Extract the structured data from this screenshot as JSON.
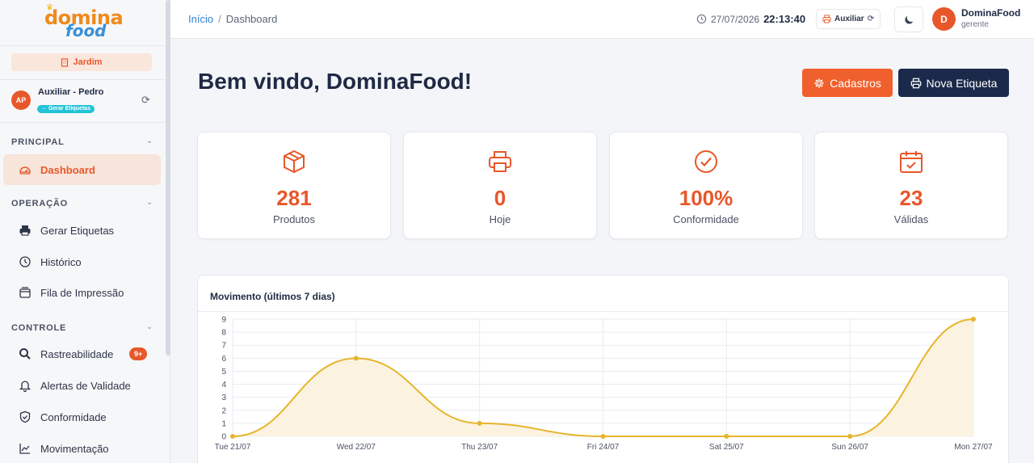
{
  "sidebar": {
    "store_label": "Jardim",
    "user": {
      "initials": "AP",
      "name": "Auxiliar - Pedro",
      "tag": "Gerar Etiquetas"
    },
    "sections": {
      "principal": "PRINCIPAL",
      "operacao": "OPERAÇÃO",
      "controle": "CONTROLE"
    },
    "items": [
      {
        "label": "Dashboard",
        "icon": "gauge-icon"
      },
      {
        "label": "Gerar Etiquetas",
        "icon": "printer-icon"
      },
      {
        "label": "Histórico",
        "icon": "clock-icon"
      },
      {
        "label": "Fila de Impressão",
        "icon": "tray-icon"
      },
      {
        "label": "Rastreabilidade",
        "icon": "search-icon",
        "badge": "9+"
      },
      {
        "label": "Alertas de Validade",
        "icon": "bell-icon"
      },
      {
        "label": "Conformidade",
        "icon": "shield-icon"
      },
      {
        "label": "Movimentação",
        "icon": "trend-icon"
      }
    ]
  },
  "header": {
    "breadcrumb_home": "Início",
    "breadcrumb_sep": "/",
    "breadcrumb_current": "Dashboard",
    "date": "27/07/2026",
    "time": "22:13:40",
    "mode_label": "Auxiliar",
    "user_initial": "D",
    "user_name": "DominaFood",
    "user_role": "gerente"
  },
  "main": {
    "welcome": "Bem vindo, DominaFood!",
    "btn_cadastros": "Cadastros",
    "btn_nova_etiqueta": "Nova Etiqueta",
    "cards": [
      {
        "value": "281",
        "label": "Produtos",
        "icon": "box-icon"
      },
      {
        "value": "0",
        "label": "Hoje",
        "icon": "printer-icon"
      },
      {
        "value": "100%",
        "label": "Conformidade",
        "icon": "check-circle-icon"
      },
      {
        "value": "23",
        "label": "Válidas",
        "icon": "calendar-check-icon"
      }
    ],
    "chart_title": "Movimento (últimos 7 dias)"
  },
  "colors": {
    "accent": "#e8572a",
    "navy": "#1b2a4a",
    "line": "#e6b52c",
    "fill": "#fbf3df"
  },
  "chart_data": {
    "type": "area",
    "categories": [
      "Tue 21/07",
      "Wed 22/07",
      "Thu 23/07",
      "Fri 24/07",
      "Sat 25/07",
      "Sun 26/07",
      "Mon 27/07"
    ],
    "series": [
      {
        "values": [
          0,
          6,
          1,
          0,
          0,
          0,
          9
        ]
      }
    ],
    "ylim": [
      0,
      9
    ],
    "yticks": [
      0,
      1,
      2,
      3,
      4,
      5,
      6,
      7,
      8,
      9
    ],
    "grid": true
  }
}
